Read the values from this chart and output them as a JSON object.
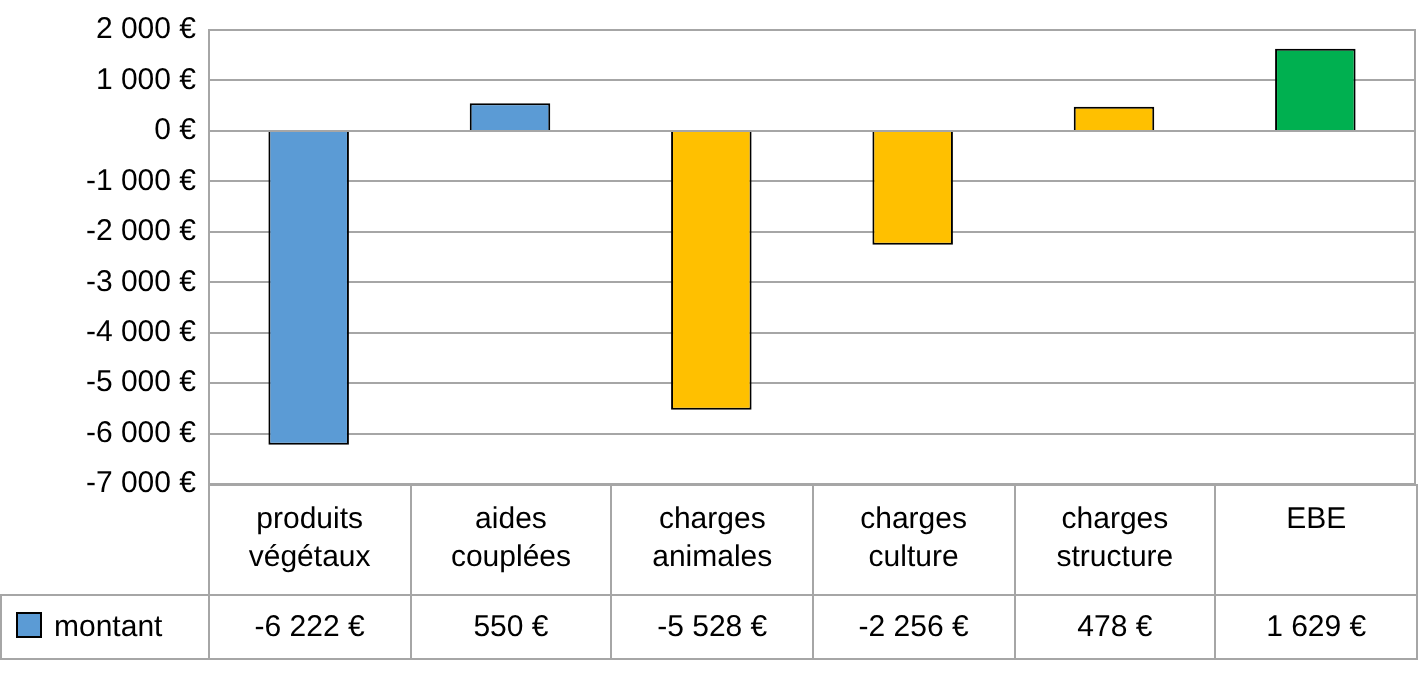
{
  "chart_data": {
    "type": "bar",
    "categories": [
      "produits végétaux",
      "aides couplées",
      "charges animales",
      "charges culture",
      "charges structure",
      "EBE"
    ],
    "series": [
      {
        "name": "montant",
        "colors": [
          "#5b9bd5",
          "#5b9bd5",
          "#ffc000",
          "#ffc000",
          "#ffc000",
          "#00b050"
        ],
        "values": [
          -6222,
          550,
          -5528,
          -2256,
          478,
          1629
        ],
        "value_labels": [
          "-6 222 €",
          "550 €",
          "-5 528 €",
          "-2 256 €",
          "478 €",
          "1 629 €"
        ]
      }
    ],
    "ylim": [
      -7000,
      2000
    ],
    "yticks": [
      {
        "value": -7000,
        "label": "-7 000 €"
      },
      {
        "value": -6000,
        "label": "-6 000 €"
      },
      {
        "value": -5000,
        "label": "-5 000 €"
      },
      {
        "value": -4000,
        "label": "-4 000 €"
      },
      {
        "value": -3000,
        "label": "-3 000 €"
      },
      {
        "value": -2000,
        "label": "-2 000 €"
      },
      {
        "value": -1000,
        "label": "-1 000 €"
      },
      {
        "value": 0,
        "label": "0 €"
      },
      {
        "value": 1000,
        "label": "1 000 €"
      },
      {
        "value": 2000,
        "label": "2 000 €"
      }
    ],
    "grid": "y",
    "legend": "bottom left"
  }
}
